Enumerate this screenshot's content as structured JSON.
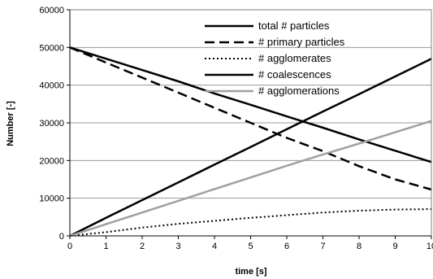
{
  "chart_data": {
    "type": "line",
    "title": "",
    "xlabel": "time [s]",
    "ylabel": "Number [-]",
    "xlim": [
      0,
      10
    ],
    "ylim": [
      0,
      60000
    ],
    "xticks": [
      "0",
      "1",
      "2",
      "3",
      "4",
      "5",
      "6",
      "7",
      "8",
      "9",
      "10"
    ],
    "yticks": [
      "0",
      "10000",
      "20000",
      "30000",
      "40000",
      "50000",
      "60000"
    ],
    "grid": "horizontal",
    "legend_position": "top-right",
    "x": [
      0,
      1,
      2,
      3,
      4,
      5,
      6,
      7,
      8,
      9,
      10
    ],
    "series": [
      {
        "name": "total # particles",
        "color": "#000000",
        "style": "solid",
        "values": [
          50000,
          47000,
          44000,
          41000,
          37800,
          34800,
          31700,
          28700,
          25600,
          22600,
          19600
        ]
      },
      {
        "name": "# primary particles",
        "color": "#000000",
        "style": "dashed",
        "values": [
          50000,
          46000,
          42000,
          38000,
          34000,
          30000,
          26000,
          22500,
          18500,
          15000,
          12300
        ]
      },
      {
        "name": "# agglomerates",
        "color": "#000000",
        "style": "dotted",
        "values": [
          0,
          1000,
          2200,
          3200,
          4000,
          4800,
          5500,
          6200,
          6700,
          7000,
          7100
        ]
      },
      {
        "name": "# coalescences",
        "color": "#000000",
        "style": "solid",
        "values": [
          0,
          4800,
          9500,
          14200,
          18900,
          23600,
          28300,
          33000,
          37600,
          42300,
          47000
        ]
      },
      {
        "name": "# agglomerations",
        "color": "#a0a0a0",
        "style": "solid",
        "values": [
          0,
          3100,
          6200,
          9300,
          12400,
          15500,
          18600,
          21600,
          24500,
          27500,
          30500
        ]
      }
    ]
  }
}
